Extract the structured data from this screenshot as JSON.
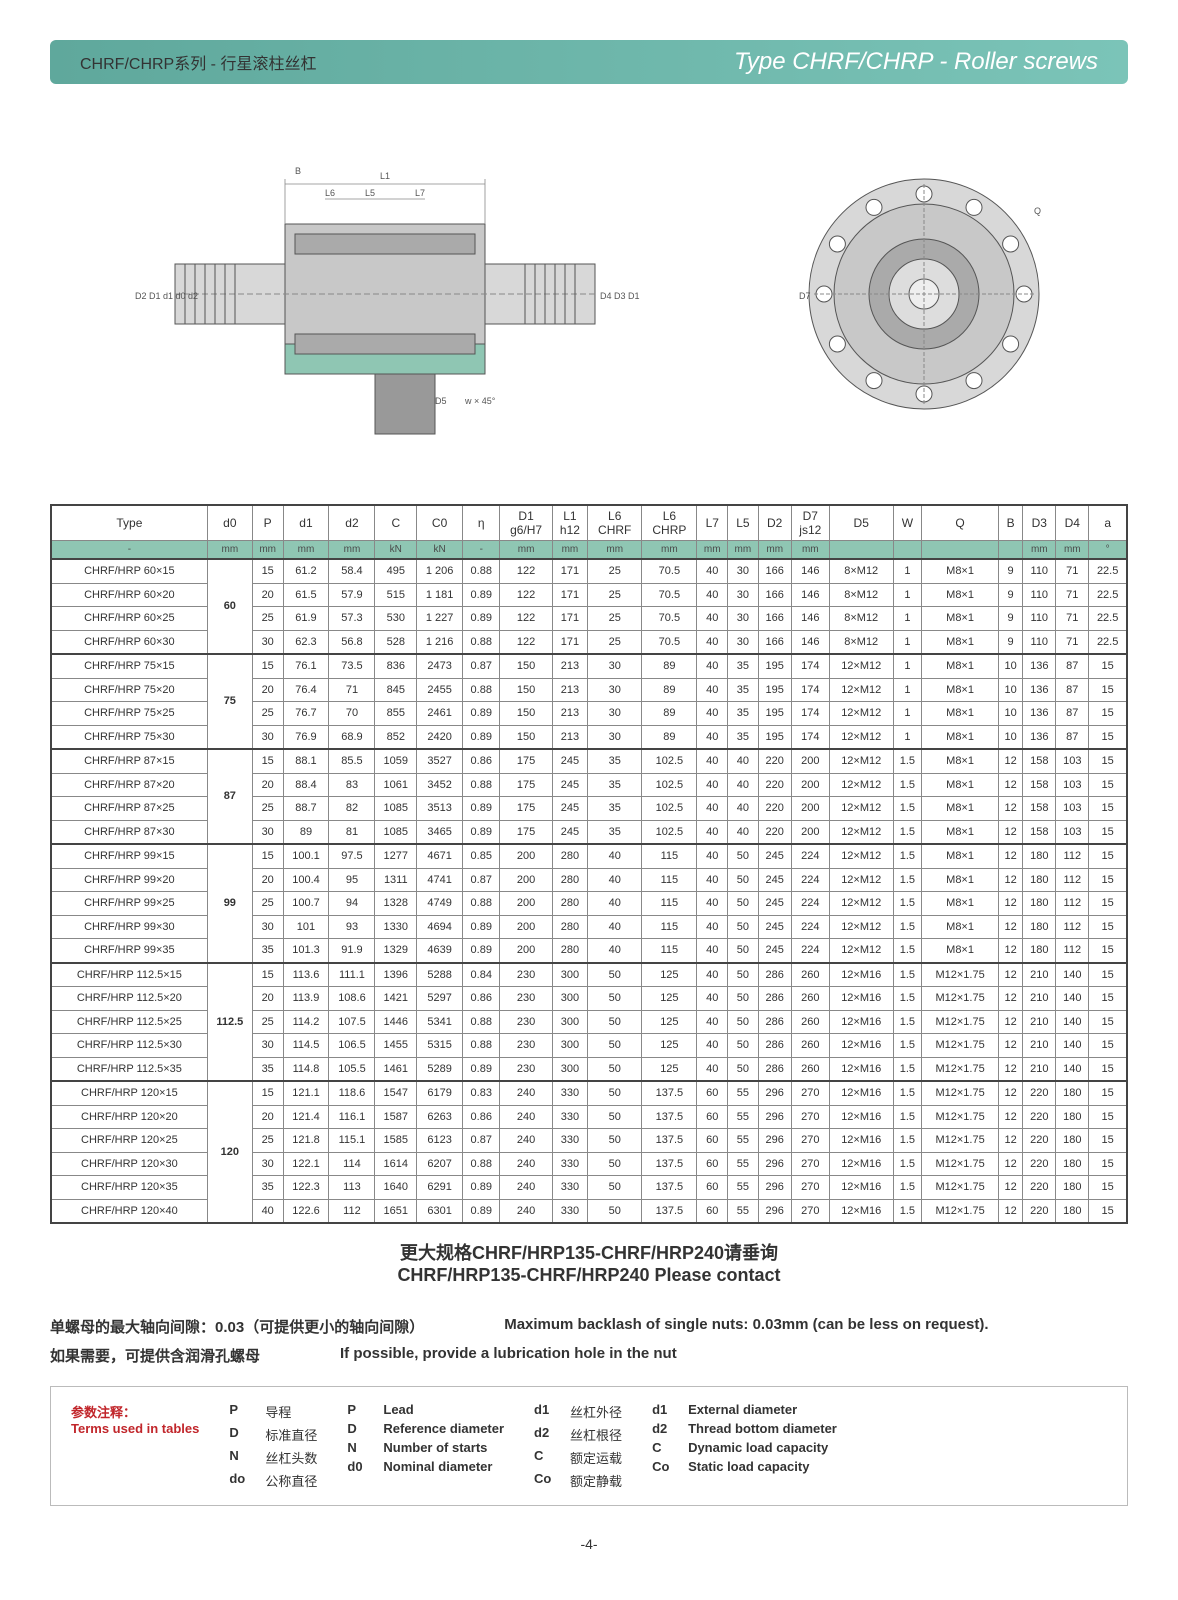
{
  "header": {
    "title_cn": "CHRF/CHRP系列 - 行星滚柱丝杠",
    "title_en": "Type CHRF/CHRP - Roller screws"
  },
  "diagram_labels": {
    "side": [
      "B",
      "L6",
      "L5",
      "L7",
      "L1",
      "D2",
      "D1",
      "d1",
      "d0",
      "d2",
      "D4",
      "D3",
      "D1",
      "D5",
      "w × 45°"
    ],
    "front": [
      "Q",
      "D7"
    ]
  },
  "table": {
    "headers": [
      "Type",
      "d0",
      "P",
      "d1",
      "d2",
      "C",
      "C0",
      "η",
      "D1 g6/H7",
      "L1 h12",
      "L6 CHRF",
      "L6 CHRP",
      "L7",
      "L5",
      "D2",
      "D7 js12",
      "D5",
      "W",
      "Q",
      "B",
      "D3",
      "D4",
      "a"
    ],
    "units": [
      "-",
      "mm",
      "mm",
      "mm",
      "mm",
      "kN",
      "kN",
      "-",
      "mm",
      "mm",
      "mm",
      "mm",
      "mm",
      "mm",
      "mm",
      "mm",
      "",
      "",
      "",
      "",
      "mm",
      "mm",
      "°"
    ],
    "groups": [
      {
        "d0": "60",
        "rows": [
          [
            "CHRF/HRP 60×15",
            "15",
            "61.2",
            "58.4",
            "495",
            "1 206",
            "0.88",
            "122",
            "171",
            "25",
            "70.5",
            "40",
            "30",
            "166",
            "146",
            "8×M12",
            "1",
            "M8×1",
            "9",
            "110",
            "71",
            "22.5"
          ],
          [
            "CHRF/HRP 60×20",
            "20",
            "61.5",
            "57.9",
            "515",
            "1 181",
            "0.89",
            "122",
            "171",
            "25",
            "70.5",
            "40",
            "30",
            "166",
            "146",
            "8×M12",
            "1",
            "M8×1",
            "9",
            "110",
            "71",
            "22.5"
          ],
          [
            "CHRF/HRP 60×25",
            "25",
            "61.9",
            "57.3",
            "530",
            "1 227",
            "0.89",
            "122",
            "171",
            "25",
            "70.5",
            "40",
            "30",
            "166",
            "146",
            "8×M12",
            "1",
            "M8×1",
            "9",
            "110",
            "71",
            "22.5"
          ],
          [
            "CHRF/HRP 60×30",
            "30",
            "62.3",
            "56.8",
            "528",
            "1 216",
            "0.88",
            "122",
            "171",
            "25",
            "70.5",
            "40",
            "30",
            "166",
            "146",
            "8×M12",
            "1",
            "M8×1",
            "9",
            "110",
            "71",
            "22.5"
          ]
        ]
      },
      {
        "d0": "75",
        "rows": [
          [
            "CHRF/HRP 75×15",
            "15",
            "76.1",
            "73.5",
            "836",
            "2473",
            "0.87",
            "150",
            "213",
            "30",
            "89",
            "40",
            "35",
            "195",
            "174",
            "12×M12",
            "1",
            "M8×1",
            "10",
            "136",
            "87",
            "15"
          ],
          [
            "CHRF/HRP 75×20",
            "20",
            "76.4",
            "71",
            "845",
            "2455",
            "0.88",
            "150",
            "213",
            "30",
            "89",
            "40",
            "35",
            "195",
            "174",
            "12×M12",
            "1",
            "M8×1",
            "10",
            "136",
            "87",
            "15"
          ],
          [
            "CHRF/HRP 75×25",
            "25",
            "76.7",
            "70",
            "855",
            "2461",
            "0.89",
            "150",
            "213",
            "30",
            "89",
            "40",
            "35",
            "195",
            "174",
            "12×M12",
            "1",
            "M8×1",
            "10",
            "136",
            "87",
            "15"
          ],
          [
            "CHRF/HRP 75×30",
            "30",
            "76.9",
            "68.9",
            "852",
            "2420",
            "0.89",
            "150",
            "213",
            "30",
            "89",
            "40",
            "35",
            "195",
            "174",
            "12×M12",
            "1",
            "M8×1",
            "10",
            "136",
            "87",
            "15"
          ]
        ]
      },
      {
        "d0": "87",
        "rows": [
          [
            "CHRF/HRP 87×15",
            "15",
            "88.1",
            "85.5",
            "1059",
            "3527",
            "0.86",
            "175",
            "245",
            "35",
            "102.5",
            "40",
            "40",
            "220",
            "200",
            "12×M12",
            "1.5",
            "M8×1",
            "12",
            "158",
            "103",
            "15"
          ],
          [
            "CHRF/HRP 87×20",
            "20",
            "88.4",
            "83",
            "1061",
            "3452",
            "0.88",
            "175",
            "245",
            "35",
            "102.5",
            "40",
            "40",
            "220",
            "200",
            "12×M12",
            "1.5",
            "M8×1",
            "12",
            "158",
            "103",
            "15"
          ],
          [
            "CHRF/HRP 87×25",
            "25",
            "88.7",
            "82",
            "1085",
            "3513",
            "0.89",
            "175",
            "245",
            "35",
            "102.5",
            "40",
            "40",
            "220",
            "200",
            "12×M12",
            "1.5",
            "M8×1",
            "12",
            "158",
            "103",
            "15"
          ],
          [
            "CHRF/HRP 87×30",
            "30",
            "89",
            "81",
            "1085",
            "3465",
            "0.89",
            "175",
            "245",
            "35",
            "102.5",
            "40",
            "40",
            "220",
            "200",
            "12×M12",
            "1.5",
            "M8×1",
            "12",
            "158",
            "103",
            "15"
          ]
        ]
      },
      {
        "d0": "99",
        "rows": [
          [
            "CHRF/HRP 99×15",
            "15",
            "100.1",
            "97.5",
            "1277",
            "4671",
            "0.85",
            "200",
            "280",
            "40",
            "115",
            "40",
            "50",
            "245",
            "224",
            "12×M12",
            "1.5",
            "M8×1",
            "12",
            "180",
            "112",
            "15"
          ],
          [
            "CHRF/HRP 99×20",
            "20",
            "100.4",
            "95",
            "1311",
            "4741",
            "0.87",
            "200",
            "280",
            "40",
            "115",
            "40",
            "50",
            "245",
            "224",
            "12×M12",
            "1.5",
            "M8×1",
            "12",
            "180",
            "112",
            "15"
          ],
          [
            "CHRF/HRP 99×25",
            "25",
            "100.7",
            "94",
            "1328",
            "4749",
            "0.88",
            "200",
            "280",
            "40",
            "115",
            "40",
            "50",
            "245",
            "224",
            "12×M12",
            "1.5",
            "M8×1",
            "12",
            "180",
            "112",
            "15"
          ],
          [
            "CHRF/HRP 99×30",
            "30",
            "101",
            "93",
            "1330",
            "4694",
            "0.89",
            "200",
            "280",
            "40",
            "115",
            "40",
            "50",
            "245",
            "224",
            "12×M12",
            "1.5",
            "M8×1",
            "12",
            "180",
            "112",
            "15"
          ],
          [
            "CHRF/HRP 99×35",
            "35",
            "101.3",
            "91.9",
            "1329",
            "4639",
            "0.89",
            "200",
            "280",
            "40",
            "115",
            "40",
            "50",
            "245",
            "224",
            "12×M12",
            "1.5",
            "M8×1",
            "12",
            "180",
            "112",
            "15"
          ]
        ]
      },
      {
        "d0": "112.5",
        "rows": [
          [
            "CHRF/HRP 112.5×15",
            "15",
            "113.6",
            "111.1",
            "1396",
            "5288",
            "0.84",
            "230",
            "300",
            "50",
            "125",
            "40",
            "50",
            "286",
            "260",
            "12×M16",
            "1.5",
            "M12×1.75",
            "12",
            "210",
            "140",
            "15"
          ],
          [
            "CHRF/HRP 112.5×20",
            "20",
            "113.9",
            "108.6",
            "1421",
            "5297",
            "0.86",
            "230",
            "300",
            "50",
            "125",
            "40",
            "50",
            "286",
            "260",
            "12×M16",
            "1.5",
            "M12×1.75",
            "12",
            "210",
            "140",
            "15"
          ],
          [
            "CHRF/HRP 112.5×25",
            "25",
            "114.2",
            "107.5",
            "1446",
            "5341",
            "0.88",
            "230",
            "300",
            "50",
            "125",
            "40",
            "50",
            "286",
            "260",
            "12×M16",
            "1.5",
            "M12×1.75",
            "12",
            "210",
            "140",
            "15"
          ],
          [
            "CHRF/HRP 112.5×30",
            "30",
            "114.5",
            "106.5",
            "1455",
            "5315",
            "0.88",
            "230",
            "300",
            "50",
            "125",
            "40",
            "50",
            "286",
            "260",
            "12×M16",
            "1.5",
            "M12×1.75",
            "12",
            "210",
            "140",
            "15"
          ],
          [
            "CHRF/HRP 112.5×35",
            "35",
            "114.8",
            "105.5",
            "1461",
            "5289",
            "0.89",
            "230",
            "300",
            "50",
            "125",
            "40",
            "50",
            "286",
            "260",
            "12×M16",
            "1.5",
            "M12×1.75",
            "12",
            "210",
            "140",
            "15"
          ]
        ]
      },
      {
        "d0": "120",
        "rows": [
          [
            "CHRF/HRP 120×15",
            "15",
            "121.1",
            "118.6",
            "1547",
            "6179",
            "0.83",
            "240",
            "330",
            "50",
            "137.5",
            "60",
            "55",
            "296",
            "270",
            "12×M16",
            "1.5",
            "M12×1.75",
            "12",
            "220",
            "180",
            "15"
          ],
          [
            "CHRF/HRP 120×20",
            "20",
            "121.4",
            "116.1",
            "1587",
            "6263",
            "0.86",
            "240",
            "330",
            "50",
            "137.5",
            "60",
            "55",
            "296",
            "270",
            "12×M16",
            "1.5",
            "M12×1.75",
            "12",
            "220",
            "180",
            "15"
          ],
          [
            "CHRF/HRP 120×25",
            "25",
            "121.8",
            "115.1",
            "1585",
            "6123",
            "0.87",
            "240",
            "330",
            "50",
            "137.5",
            "60",
            "55",
            "296",
            "270",
            "12×M16",
            "1.5",
            "M12×1.75",
            "12",
            "220",
            "180",
            "15"
          ],
          [
            "CHRF/HRP 120×30",
            "30",
            "122.1",
            "114",
            "1614",
            "6207",
            "0.88",
            "240",
            "330",
            "50",
            "137.5",
            "60",
            "55",
            "296",
            "270",
            "12×M16",
            "1.5",
            "M12×1.75",
            "12",
            "220",
            "180",
            "15"
          ],
          [
            "CHRF/HRP 120×35",
            "35",
            "122.3",
            "113",
            "1640",
            "6291",
            "0.89",
            "240",
            "330",
            "50",
            "137.5",
            "60",
            "55",
            "296",
            "270",
            "12×M16",
            "1.5",
            "M12×1.75",
            "12",
            "220",
            "180",
            "15"
          ],
          [
            "CHRF/HRP 120×40",
            "40",
            "122.6",
            "112",
            "1651",
            "6301",
            "0.89",
            "240",
            "330",
            "50",
            "137.5",
            "60",
            "55",
            "296",
            "270",
            "12×M16",
            "1.5",
            "M12×1.75",
            "12",
            "220",
            "180",
            "15"
          ]
        ]
      }
    ]
  },
  "contact": {
    "cn": "更大规格CHRF/HRP135-CHRF/HRP240请垂询",
    "en": "CHRF/HRP135-CHRF/HRP240 Please contact"
  },
  "notes": {
    "backlash_cn": "单螺母的最大轴向间隙：0.03（可提供更小的轴向间隙）",
    "backlash_en": "Maximum backlash of single nuts: 0.03mm (can be less on request).",
    "lube_cn": "如果需要，可提供含润滑孔螺母",
    "lube_en": "If possible, provide a lubrication hole in the nut"
  },
  "terms": {
    "title_cn": "参数注释：",
    "title_en": "Terms used in tables",
    "cn": [
      [
        "P",
        "导程"
      ],
      [
        "D",
        "标准直径"
      ],
      [
        "N",
        "丝杠头数"
      ],
      [
        "do",
        "公称直径"
      ]
    ],
    "en1": [
      [
        "P",
        "Lead"
      ],
      [
        "D",
        "Reference diameter"
      ],
      [
        "N",
        "Number of starts"
      ],
      [
        "d0",
        "Nominal diameter"
      ]
    ],
    "cn2": [
      [
        "d1",
        "丝杠外径"
      ],
      [
        "d2",
        "丝杠根径"
      ],
      [
        "C",
        "额定运载"
      ],
      [
        "Co",
        "额定静载"
      ]
    ],
    "en2": [
      [
        "d1",
        "External diameter"
      ],
      [
        "d2",
        "Thread bottom diameter"
      ],
      [
        "C",
        "Dynamic load capacity"
      ],
      [
        "Co",
        "Static load capacity"
      ]
    ]
  },
  "page": "-4-"
}
